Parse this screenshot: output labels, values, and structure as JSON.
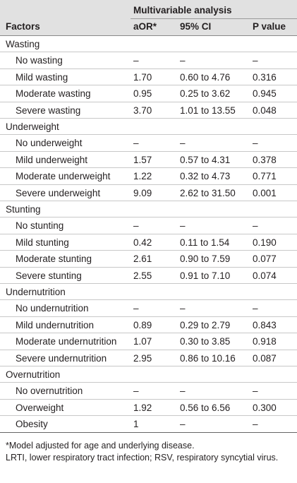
{
  "table": {
    "header": {
      "span_title": "Multivariable analysis",
      "columns": [
        "Factors",
        "aOR*",
        "95% CI",
        "P value"
      ]
    },
    "groups": [
      {
        "name": "Wasting",
        "rows": [
          [
            "No wasting",
            "–",
            "–",
            "–"
          ],
          [
            "Mild wasting",
            "1.70",
            "0.60 to 4.76",
            "0.316"
          ],
          [
            "Moderate wasting",
            "0.95",
            "0.25 to 3.62",
            "0.945"
          ],
          [
            "Severe wasting",
            "3.70",
            "1.01 to 13.55",
            "0.048"
          ]
        ]
      },
      {
        "name": "Underweight",
        "rows": [
          [
            "No underweight",
            "–",
            "–",
            "–"
          ],
          [
            "Mild underweight",
            "1.57",
            "0.57 to 4.31",
            "0.378"
          ],
          [
            "Moderate underweight",
            "1.22",
            "0.32 to 4.73",
            "0.771"
          ],
          [
            "Severe underweight",
            "9.09",
            "2.62 to 31.50",
            "0.001"
          ]
        ]
      },
      {
        "name": "Stunting",
        "rows": [
          [
            "No stunting",
            "–",
            "–",
            "–"
          ],
          [
            "Mild stunting",
            "0.42",
            "0.11 to 1.54",
            "0.190"
          ],
          [
            "Moderate stunting",
            "2.61",
            "0.90 to 7.59",
            "0.077"
          ],
          [
            "Severe stunting",
            "2.55",
            "0.91 to 7.10",
            "0.074"
          ]
        ]
      },
      {
        "name": "Undernutrition",
        "rows": [
          [
            "No undernutrition",
            "–",
            "–",
            "–"
          ],
          [
            "Mild undernutrition",
            "0.89",
            "0.29 to 2.79",
            "0.843"
          ],
          [
            "Moderate undernutrition",
            "1.07",
            "0.30 to 3.85",
            "0.918"
          ],
          [
            "Severe undernutrition",
            "2.95",
            "0.86 to 10.16",
            "0.087"
          ]
        ]
      },
      {
        "name": "Overnutrition",
        "rows": [
          [
            "No overnutrition",
            "–",
            "–",
            "–"
          ],
          [
            "Overweight",
            "1.92",
            "0.56 to 6.56",
            "0.300"
          ],
          [
            "Obesity",
            "1",
            "–",
            "–"
          ]
        ]
      }
    ],
    "footnotes": [
      "*Model adjusted for age and underlying disease.",
      "LRTI, lower respiratory tract infection; RSV, respiratory syncytial virus."
    ]
  }
}
